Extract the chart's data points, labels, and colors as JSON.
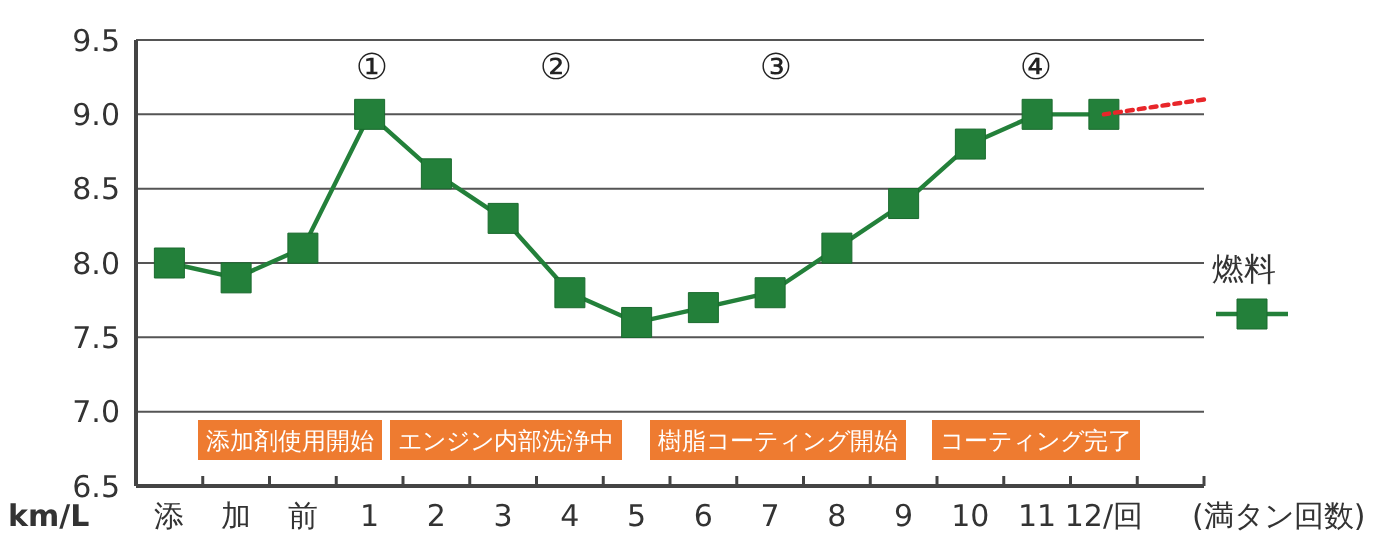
{
  "chart_data": {
    "type": "line",
    "ylabel": "km/L",
    "xlabel": "(満タン回数)",
    "x": [
      -2,
      -1,
      0,
      1,
      2,
      3,
      4,
      5,
      6,
      7,
      8,
      9,
      10,
      11,
      12
    ],
    "xlim": [
      -2.5,
      13.5
    ],
    "xticks": [
      {
        "value": -2,
        "label": "添"
      },
      {
        "value": -1,
        "label": "加"
      },
      {
        "value": 0,
        "label": "前"
      },
      1,
      2,
      3,
      4,
      5,
      6,
      7,
      8,
      9,
      10,
      11,
      {
        "value": 12,
        "label": "12/回"
      },
      {
        "value": -1.5,
        "label": null
      },
      {
        "value": -0.5,
        "label": null
      },
      {
        "value": 0.5,
        "label": null
      },
      {
        "value": 1.5,
        "label": null
      },
      {
        "value": 2.5,
        "label": null
      },
      {
        "value": 3.5,
        "label": null
      },
      {
        "value": 4.5,
        "label": null
      },
      {
        "value": 5.5,
        "label": null
      },
      {
        "value": 6.5,
        "label": null
      },
      {
        "value": 7.5,
        "label": null
      },
      {
        "value": 8.5,
        "label": null
      },
      {
        "value": 9.5,
        "label": null
      },
      {
        "value": 10.5,
        "label": null
      },
      {
        "value": 11.5,
        "label": null
      },
      {
        "value": 12.5,
        "label": null
      },
      {
        "value": 13.5,
        "label": null
      }
    ],
    "ylim": [
      6.5,
      9.5
    ],
    "yticks": [
      {
        "value": 6.5,
        "label": "6.5"
      },
      {
        "value": 7,
        "label": "7.0"
      },
      {
        "value": 7.5,
        "label": "7.5"
      },
      {
        "value": 8,
        "label": "8.0"
      },
      {
        "value": 8.5,
        "label": "8.5"
      },
      {
        "value": 9,
        "label": "9.0"
      },
      {
        "value": 9.5,
        "label": "9.5"
      }
    ],
    "grid": "y",
    "legend": "right",
    "series": [
      {
        "name": "燃料",
        "color": "#23803a",
        "marker": "square",
        "line_style": "solid",
        "values": [
          8.0,
          7.9,
          8.1,
          9.0,
          8.6,
          8.3,
          7.8,
          7.6,
          7.7,
          7.8,
          8.1,
          8.4,
          8.8,
          9.0,
          9.0
        ]
      },
      {
        "color": "#e8262a",
        "marker": "none",
        "line_style": "dotted",
        "x": [
          12,
          13.5
        ],
        "values": [
          9.0,
          9.1
        ]
      }
    ],
    "annotations": [
      "①",
      "②",
      "③",
      "④",
      "添加剤使用開始",
      "エンジン内部洗浄中",
      "樹脂コーティング開始",
      "コーティング完了"
    ]
  }
}
